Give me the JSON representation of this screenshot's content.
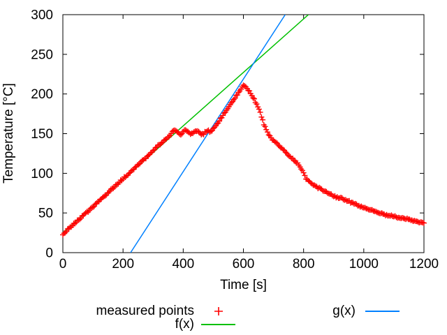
{
  "figure": {
    "background": "#ffffff",
    "frame_color": "#000000"
  },
  "axes": {
    "xlabel": "Time [s]",
    "ylabel": "Temperature [°C]",
    "x_range": [
      0,
      1200
    ],
    "y_range": [
      0,
      300
    ],
    "x_ticks": [
      0,
      200,
      400,
      600,
      800,
      1000,
      1200
    ],
    "y_ticks": [
      0,
      50,
      100,
      150,
      200,
      250,
      300
    ],
    "grid": false,
    "tick_mirror": true
  },
  "legend": {
    "position": "below-plot",
    "entries": [
      {
        "id": "measured",
        "label": "measured points",
        "type": "point",
        "marker": "plus",
        "color": "#ff0000"
      },
      {
        "id": "f",
        "label": "f(x)",
        "type": "line",
        "color": "#00c000"
      },
      {
        "id": "g",
        "label": "g(x)",
        "type": "line",
        "color": "#0080ff"
      }
    ]
  },
  "chart_data": {
    "type": "scatter",
    "title": "",
    "xlabel": "Time [s]",
    "ylabel": "Temperature [°C]",
    "xlim": [
      0,
      1200
    ],
    "ylim": [
      0,
      300
    ],
    "series": [
      {
        "name": "measured points",
        "style": "points",
        "marker": "plus",
        "color": "#ff0000",
        "sample_interval_s": 4,
        "noise_amplitude_c": 1.5,
        "keypoints": [
          [
            0,
            23.5
          ],
          [
            20,
            30
          ],
          [
            40,
            37
          ],
          [
            60,
            44
          ],
          [
            80,
            51
          ],
          [
            100,
            58
          ],
          [
            120,
            65
          ],
          [
            140,
            72
          ],
          [
            160,
            79
          ],
          [
            180,
            86
          ],
          [
            200,
            93
          ],
          [
            220,
            100
          ],
          [
            240,
            107
          ],
          [
            260,
            114
          ],
          [
            280,
            121
          ],
          [
            300,
            128.5
          ],
          [
            320,
            135.5
          ],
          [
            340,
            142.5
          ],
          [
            352,
            147
          ],
          [
            360,
            150.5
          ],
          [
            366,
            153
          ],
          [
            371,
            154.5
          ],
          [
            377,
            153
          ],
          [
            382,
            151
          ],
          [
            387,
            149.5
          ],
          [
            392,
            149.5
          ],
          [
            397,
            151
          ],
          [
            403,
            153.5
          ],
          [
            408,
            154.5
          ],
          [
            414,
            153
          ],
          [
            420,
            150.5
          ],
          [
            425,
            149
          ],
          [
            430,
            149.5
          ],
          [
            436,
            152
          ],
          [
            441,
            154
          ],
          [
            447,
            153.5
          ],
          [
            453,
            151.5
          ],
          [
            458,
            149.5
          ],
          [
            463,
            149
          ],
          [
            468,
            150
          ],
          [
            473,
            151.5
          ],
          [
            478,
            153
          ],
          [
            483,
            153.5
          ],
          [
            488,
            152
          ],
          [
            492,
            152
          ],
          [
            496,
            153.5
          ],
          [
            500,
            155.5
          ],
          [
            505,
            158
          ],
          [
            510,
            161
          ],
          [
            520,
            166.5
          ],
          [
            530,
            172
          ],
          [
            540,
            177.5
          ],
          [
            550,
            183
          ],
          [
            560,
            188.5
          ],
          [
            570,
            194
          ],
          [
            580,
            199.5
          ],
          [
            590,
            205
          ],
          [
            596,
            209
          ],
          [
            600,
            210.8
          ],
          [
            604,
            210.5
          ],
          [
            608,
            209
          ],
          [
            612,
            207
          ],
          [
            618,
            204
          ],
          [
            624,
            200.5
          ],
          [
            630,
            197
          ],
          [
            636,
            193
          ],
          [
            641,
            189
          ],
          [
            646,
            185
          ],
          [
            651,
            181
          ],
          [
            656,
            176
          ],
          [
            661,
            170.5
          ],
          [
            666,
            164.5
          ],
          [
            671,
            159
          ],
          [
            676,
            154.5
          ],
          [
            681,
            151
          ],
          [
            686,
            148.5
          ],
          [
            691,
            146
          ],
          [
            700,
            141.5
          ],
          [
            710,
            138
          ],
          [
            720,
            134.5
          ],
          [
            730,
            130.5
          ],
          [
            740,
            126.5
          ],
          [
            750,
            122.5
          ],
          [
            760,
            119
          ],
          [
            770,
            115.5
          ],
          [
            780,
            112
          ],
          [
            787,
            109
          ],
          [
            793,
            106
          ],
          [
            798,
            102
          ],
          [
            803,
            97.5
          ],
          [
            808,
            94
          ],
          [
            813,
            91.5
          ],
          [
            820,
            89
          ],
          [
            828,
            86.5
          ],
          [
            837,
            84.5
          ],
          [
            847,
            82.5
          ],
          [
            858,
            80
          ],
          [
            870,
            77.5
          ],
          [
            882,
            75
          ],
          [
            895,
            72.5
          ],
          [
            908,
            70.5
          ],
          [
            920,
            69
          ],
          [
            935,
            67
          ],
          [
            950,
            64.5
          ],
          [
            965,
            62
          ],
          [
            980,
            59.5
          ],
          [
            995,
            57.5
          ],
          [
            1010,
            55.5
          ],
          [
            1025,
            53.5
          ],
          [
            1040,
            51.5
          ],
          [
            1052,
            50
          ],
          [
            1065,
            48.5
          ],
          [
            1080,
            47
          ],
          [
            1095,
            45.5
          ],
          [
            1110,
            44.5
          ],
          [
            1125,
            43.5
          ],
          [
            1140,
            42.5
          ],
          [
            1155,
            41
          ],
          [
            1170,
            40
          ],
          [
            1185,
            38.5
          ],
          [
            1200,
            37.5
          ]
        ]
      },
      {
        "name": "f(x)",
        "style": "line",
        "color": "#00c000",
        "line_points": [
          [
            0,
            25
          ],
          [
            816,
            300
          ]
        ]
      },
      {
        "name": "g(x)",
        "style": "line",
        "color": "#0080ff",
        "line_points": [
          [
            225,
            0
          ],
          [
            739,
            300
          ]
        ]
      }
    ]
  }
}
